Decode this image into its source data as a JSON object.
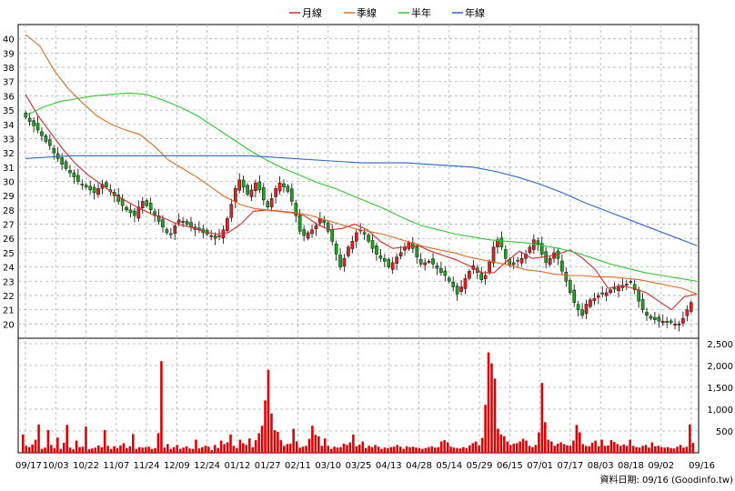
{
  "colors": {
    "monthly": "#d42a2a",
    "quarterly": "#e06a1e",
    "half_year": "#2fc82f",
    "annual": "#2a66cc",
    "candle_up": "#e02020",
    "candle_down": "#20a020",
    "volume": "#e00000",
    "grid": "#b0b0b0"
  },
  "legend": [
    {
      "key": "monthly",
      "label": "月線"
    },
    {
      "key": "quarterly",
      "label": "季線"
    },
    {
      "key": "half_year",
      "label": "半年"
    },
    {
      "key": "annual",
      "label": "年線"
    }
  ],
  "credit": "資料日期: 09/16  (Goodinfo.tw)",
  "chart_data": [
    {
      "type": "candlestick",
      "panel": "price",
      "ylim": [
        19,
        41
      ],
      "ticks": [
        "20",
        "21",
        "22",
        "23",
        "24",
        "25",
        "26",
        "27",
        "28",
        "29",
        "30",
        "31",
        "32",
        "33",
        "34",
        "35",
        "36",
        "37",
        "38",
        "39",
        "40"
      ],
      "x_labels": [
        "09/17",
        "10/03",
        "10/22",
        "11/07",
        "11/24",
        "12/09",
        "12/24",
        "01/12",
        "01/27",
        "02/11",
        "03/10",
        "03/25",
        "04/13",
        "04/28",
        "05/14",
        "05/29",
        "06/15",
        "07/01",
        "07/17",
        "08/03",
        "08/18",
        "09/02",
        "09/16"
      ],
      "close_series": [
        34.5,
        34.2,
        33.9,
        33.6,
        33.2,
        32.8,
        32.5,
        32.0,
        31.6,
        31.2,
        30.9,
        30.6,
        30.3,
        30.0,
        29.8,
        29.6,
        29.4,
        29.2,
        29.5,
        29.8,
        29.6,
        29.3,
        29.0,
        28.6,
        28.3,
        28.0,
        27.8,
        27.6,
        28.2,
        28.6,
        28.3,
        28.0,
        27.6,
        27.2,
        26.8,
        26.4,
        26.3,
        26.9,
        27.3,
        27.2,
        27.0,
        26.8,
        26.8,
        26.6,
        26.4,
        26.3,
        26.2,
        26.0,
        26.2,
        26.6,
        27.4,
        28.4,
        29.5,
        30.1,
        29.6,
        29.1,
        29.4,
        29.9,
        29.4,
        28.7,
        28.2,
        28.8,
        29.5,
        29.9,
        29.6,
        29.3,
        28.6,
        27.6,
        26.5,
        26.2,
        26.4,
        26.6,
        26.9,
        27.4,
        27.1,
        26.5,
        25.8,
        24.9,
        24.0,
        24.6,
        25.4,
        25.8,
        26.4,
        26.6,
        26.3,
        25.8,
        25.3,
        24.9,
        24.6,
        24.4,
        24.0,
        24.3,
        24.7,
        25.0,
        25.4,
        25.7,
        25.3,
        24.7,
        24.2,
        24.3,
        24.4,
        24.2,
        23.9,
        23.6,
        23.4,
        23.0,
        22.6,
        22.1,
        22.6,
        23.2,
        23.7,
        24.1,
        23.6,
        23.1,
        23.4,
        24.4,
        25.4,
        25.9,
        25.4,
        24.6,
        24.1,
        24.3,
        24.4,
        24.6,
        24.9,
        25.4,
        25.9,
        25.6,
        24.9,
        24.3,
        24.6,
        25.0,
        24.6,
        23.7,
        23.0,
        22.2,
        21.5,
        21.0,
        20.6,
        21.4,
        21.7,
        21.8,
        22.0,
        22.1,
        22.2,
        22.4,
        22.5,
        22.6,
        22.7,
        22.8,
        22.9,
        22.4,
        21.6,
        21.0,
        20.6,
        20.4,
        20.3,
        20.2,
        20.2,
        20.1,
        20.1,
        20.0,
        20.0,
        20.4,
        21.0,
        21.5
      ],
      "series": [
        {
          "name": "月線",
          "key": "monthly",
          "values": [
            36.1,
            34.6,
            33.4,
            32.2,
            31.2,
            30.4,
            29.8,
            29.1,
            28.6,
            28.1,
            27.7,
            27.4,
            27.0,
            26.8,
            26.5,
            26.3,
            26.4,
            27.0,
            27.9,
            28.0,
            27.9,
            27.8,
            27.6,
            27.0,
            26.6,
            26.7,
            27.0,
            26.6,
            25.8,
            25.3,
            25.4,
            25.5,
            25.1,
            24.8,
            24.5,
            24.1,
            23.6,
            23.6,
            24.4,
            25.1,
            24.6,
            24.7,
            24.9,
            25.2,
            24.6,
            23.8,
            22.5,
            22.7,
            22.5,
            22.2,
            21.6,
            21.0,
            21.9,
            22.1
          ]
        },
        {
          "name": "季線",
          "key": "quarterly",
          "values": [
            40.3,
            39.5,
            37.8,
            36.5,
            35.5,
            34.6,
            34.0,
            33.6,
            33.3,
            32.5,
            31.5,
            30.9,
            30.3,
            29.6,
            28.9,
            28.4,
            28.1,
            28.0,
            27.9,
            27.8,
            27.6,
            27.3,
            27.0,
            26.7,
            26.5,
            26.3,
            26.0,
            25.7,
            25.4,
            25.2,
            25.0,
            24.7,
            24.5,
            24.3,
            24.1,
            23.8,
            23.7,
            23.5,
            23.4,
            23.4,
            23.3,
            23.3,
            23.2,
            23.1,
            22.9,
            22.7,
            22.5,
            22.1
          ]
        },
        {
          "name": "半年",
          "key": "half_year",
          "values": [
            34.6,
            35.2,
            35.6,
            35.8,
            36.0,
            36.1,
            36.2,
            36.1,
            35.7,
            35.2,
            34.6,
            33.8,
            33.0,
            32.2,
            31.5,
            30.9,
            30.4,
            29.9,
            29.5,
            29.0,
            28.5,
            28.0,
            27.4,
            26.9,
            26.6,
            26.3,
            26.1,
            25.9,
            25.8,
            25.7,
            25.5,
            25.3,
            25.0,
            24.6,
            24.2,
            23.9,
            23.6,
            23.4,
            23.2,
            23.0
          ]
        },
        {
          "name": "年線",
          "key": "annual",
          "values": [
            31.6,
            31.7,
            31.8,
            31.8,
            31.8,
            31.8,
            31.8,
            31.8,
            31.8,
            31.8,
            31.8,
            31.7,
            31.6,
            31.5,
            31.4,
            31.3,
            31.3,
            31.3,
            31.2,
            31.1,
            31.0,
            30.7,
            30.3,
            29.8,
            29.2,
            28.5,
            27.9,
            27.3,
            26.7,
            26.1,
            25.5
          ]
        }
      ]
    },
    {
      "type": "bar",
      "panel": "volume",
      "ylim": [
        0,
        2500
      ],
      "ticks": [
        "500",
        "1,000",
        "1,500",
        "2,000",
        "2,500"
      ],
      "values": [
        420,
        160,
        130,
        190,
        300,
        650,
        90,
        120,
        520,
        180,
        110,
        350,
        90,
        230,
        640,
        120,
        80,
        280,
        130,
        140,
        600,
        80,
        100,
        120,
        170,
        130,
        520,
        160,
        90,
        150,
        110,
        170,
        220,
        110,
        150,
        430,
        90,
        130,
        120,
        130,
        140,
        90,
        110,
        450,
        2100,
        120,
        200,
        90,
        130,
        180,
        90,
        120,
        150,
        100,
        90,
        300,
        100,
        130,
        160,
        140,
        60,
        180,
        110,
        280,
        200,
        240,
        420,
        160,
        110,
        300,
        220,
        180,
        330,
        130,
        290,
        450,
        620,
        1200,
        1900,
        900,
        520,
        480,
        290,
        160,
        200,
        210,
        550,
        260,
        120,
        140,
        160,
        320,
        620,
        410,
        380,
        160,
        330,
        160,
        90,
        140,
        120,
        130,
        210,
        180,
        240,
        420,
        150,
        190,
        260,
        110,
        160,
        130,
        180,
        140,
        90,
        120,
        110,
        130,
        140,
        180,
        140,
        90,
        150,
        130,
        140,
        120,
        110,
        90,
        110,
        130,
        150,
        120,
        130,
        260,
        290,
        240,
        140,
        120,
        110,
        100,
        130,
        110,
        170,
        220,
        260,
        170,
        340,
        1100,
        2300,
        2050,
        1700,
        550,
        420,
        380,
        260,
        180,
        210,
        220,
        260,
        320,
        280,
        160,
        130,
        180,
        470,
        1600,
        700,
        300,
        260,
        160,
        210,
        240,
        200,
        170,
        160,
        280,
        640,
        470,
        200,
        160,
        150,
        230,
        280,
        150,
        300,
        160,
        170,
        290,
        250,
        200,
        160,
        190,
        160,
        300,
        160,
        130,
        120,
        160,
        180,
        120,
        240,
        150,
        160,
        130,
        120,
        130,
        110,
        100,
        140,
        180,
        120,
        140,
        650,
        230
      ]
    }
  ]
}
